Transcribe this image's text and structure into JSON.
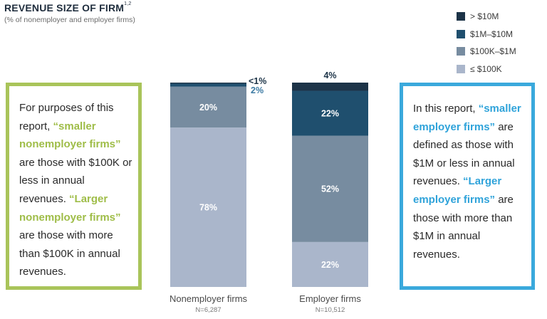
{
  "header": {
    "title": "REVENUE SIZE OF FIRM",
    "title_sup": "1,2",
    "subtitle": "(% of nonemployer and employer firms)"
  },
  "callouts": {
    "left": {
      "part1": "For purposes of this report, ",
      "hl1": "“smaller nonemployer firms”",
      "part2": " are those with $100K or less in annual revenues. ",
      "hl2": "“Larger nonemployer firms”",
      "part3": " are those with more than $100K in annual revenues."
    },
    "right": {
      "part1": "In this report, ",
      "hl1": "“smaller employer firms”",
      "part2": " are defined as those with $1M or less in annual revenues. ",
      "hl2": "“Larger employer firms”",
      "part3": " are those with more than $1M in annual revenues."
    }
  },
  "colors": {
    "gt10m": "#1c3347",
    "1m_10m": "#1f4f6e",
    "100k_1m": "#778ca0",
    "le100k": "#aab6cb",
    "green": "#a9c45a",
    "blue": "#3aa9dc"
  },
  "chart_data": {
    "type": "stacked-bar",
    "title": "REVENUE SIZE OF FIRM",
    "subtitle": "(% of nonemployer and employer firms)",
    "ylim": [
      0,
      100
    ],
    "legend_position": "top-right",
    "legend": [
      {
        "name": "> $10M",
        "color": "#1c3347"
      },
      {
        "name": "$1M–$10M",
        "color": "#1f4f6e"
      },
      {
        "name": "$100K–$1M",
        "color": "#778ca0"
      },
      {
        "name": "≤ $100K",
        "color": "#aab6cb"
      }
    ],
    "categories": [
      {
        "name": "Nonemployer firms",
        "n": "N=6,287",
        "segments": [
          {
            "series": "≤ $100K",
            "value": 78,
            "label": "78%"
          },
          {
            "series": "$100K–$1M",
            "value": 20,
            "label": "20%"
          },
          {
            "series": "$1M–$10M",
            "value": 1.5,
            "label": "2%"
          },
          {
            "series": "> $10M",
            "value": 0.5,
            "label": "<1%"
          }
        ]
      },
      {
        "name": "Employer firms",
        "n": "N=10,512",
        "segments": [
          {
            "series": "≤ $100K",
            "value": 22,
            "label": "22%"
          },
          {
            "series": "$100K–$1M",
            "value": 52,
            "label": "52%"
          },
          {
            "series": "$1M–$10M",
            "value": 22,
            "label": "22%"
          },
          {
            "series": "> $10M",
            "value": 4,
            "label": "4%"
          }
        ]
      }
    ]
  }
}
